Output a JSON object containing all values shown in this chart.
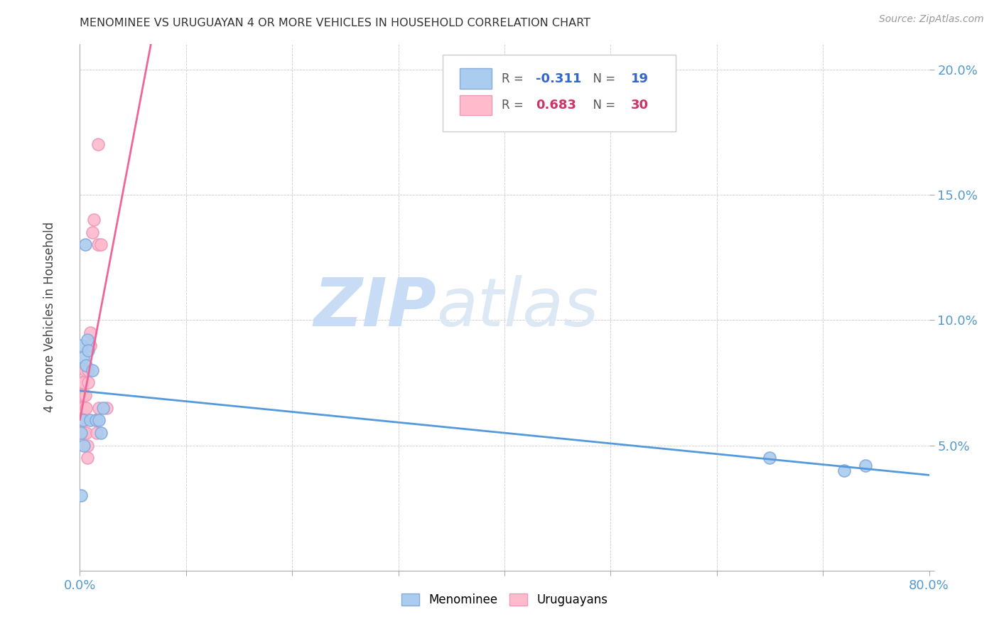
{
  "title": "MENOMINEE VS URUGUAYAN 4 OR MORE VEHICLES IN HOUSEHOLD CORRELATION CHART",
  "source": "Source: ZipAtlas.com",
  "ylabel": "4 or more Vehicles in Household",
  "xlim": [
    0.0,
    0.8
  ],
  "ylim": [
    0.0,
    0.21
  ],
  "xticks": [
    0.0,
    0.1,
    0.2,
    0.3,
    0.4,
    0.5,
    0.6,
    0.7,
    0.8
  ],
  "xticklabels": [
    "0.0%",
    "",
    "",
    "",
    "",
    "",
    "",
    "",
    "80.0%"
  ],
  "yticks": [
    0.0,
    0.05,
    0.1,
    0.15,
    0.2
  ],
  "yticklabels": [
    "",
    "5.0%",
    "10.0%",
    "15.0%",
    "20.0%"
  ],
  "menominee_color": "#aaccee",
  "menominee_edge": "#88aadd",
  "uruguayan_color": "#ffbbcc",
  "uruguayan_edge": "#ee99bb",
  "menominee_line_color": "#5599dd",
  "uruguayan_line_color": "#ee6699",
  "menominee_R": -0.311,
  "menominee_N": 19,
  "uruguayan_R": 0.683,
  "uruguayan_N": 30,
  "watermark_zip": "ZIP",
  "watermark_atlas": "atlas",
  "background_color": "#ffffff",
  "menominee_x": [
    0.001,
    0.001,
    0.002,
    0.003,
    0.003,
    0.004,
    0.005,
    0.006,
    0.007,
    0.008,
    0.01,
    0.012,
    0.015,
    0.018,
    0.02,
    0.022,
    0.65,
    0.72,
    0.74
  ],
  "menominee_y": [
    0.055,
    0.03,
    0.09,
    0.085,
    0.06,
    0.05,
    0.13,
    0.082,
    0.092,
    0.088,
    0.06,
    0.08,
    0.06,
    0.06,
    0.055,
    0.065,
    0.045,
    0.04,
    0.042
  ],
  "uruguayan_x": [
    0.001,
    0.001,
    0.001,
    0.002,
    0.002,
    0.002,
    0.003,
    0.003,
    0.003,
    0.004,
    0.004,
    0.005,
    0.005,
    0.006,
    0.006,
    0.007,
    0.007,
    0.008,
    0.008,
    0.01,
    0.01,
    0.012,
    0.013,
    0.015,
    0.016,
    0.017,
    0.017,
    0.018,
    0.02,
    0.025
  ],
  "uruguayan_y": [
    0.075,
    0.065,
    0.055,
    0.07,
    0.065,
    0.06,
    0.075,
    0.07,
    0.065,
    0.06,
    0.055,
    0.08,
    0.07,
    0.065,
    0.055,
    0.05,
    0.045,
    0.08,
    0.075,
    0.095,
    0.09,
    0.135,
    0.14,
    0.06,
    0.055,
    0.17,
    0.13,
    0.065,
    0.13,
    0.065
  ],
  "menominee_trendline_x": [
    0.0,
    0.8
  ],
  "uruguayan_trendline_x_end": 0.3
}
